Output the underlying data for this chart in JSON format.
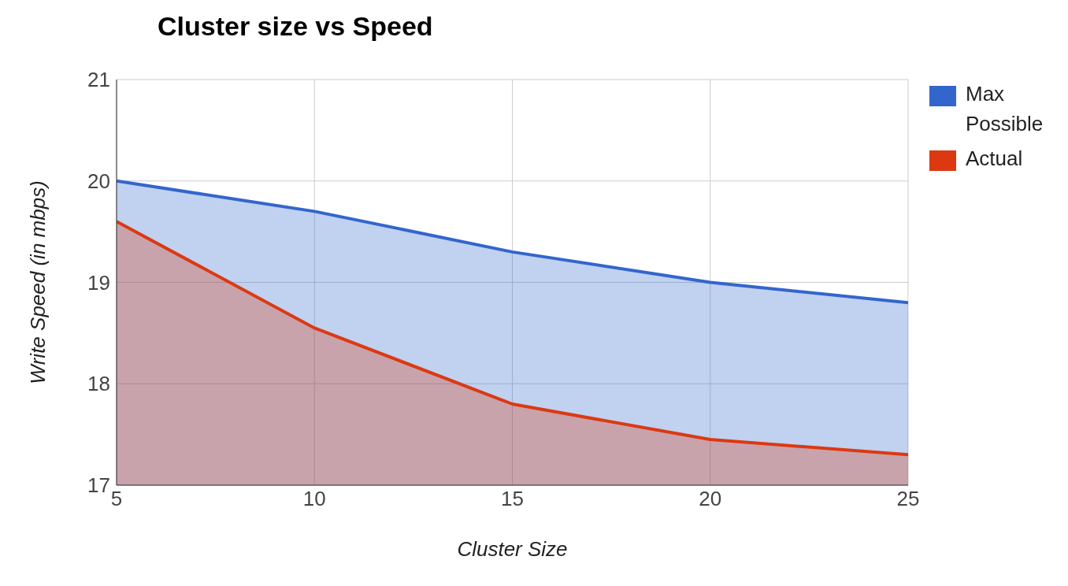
{
  "chart_data": {
    "type": "area",
    "title": "Cluster size vs Speed",
    "xlabel": "Cluster Size",
    "ylabel": "Write Speed (in mbps)",
    "x": [
      5,
      10,
      15,
      20,
      25
    ],
    "series": [
      {
        "name": "Max Possible",
        "color": "#3366cc",
        "values": [
          20.0,
          19.7,
          19.3,
          19.0,
          18.8
        ]
      },
      {
        "name": "Actual",
        "color": "#dc3912",
        "values": [
          19.6,
          18.55,
          17.8,
          17.45,
          17.3
        ]
      }
    ],
    "xlim": [
      5,
      25
    ],
    "xticks": [
      5,
      10,
      15,
      20,
      25
    ],
    "ylim": [
      17,
      21
    ],
    "yticks": [
      17,
      18,
      19,
      20,
      21
    ],
    "grid": true,
    "legend": "top right"
  }
}
